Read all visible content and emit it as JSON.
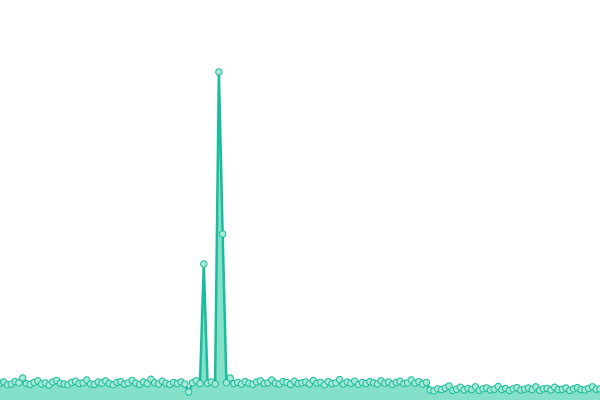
{
  "chart_data": {
    "type": "line",
    "area": true,
    "markers": true,
    "color": "#1abc9c",
    "area_color": "#84e0c8",
    "marker_fill": "#a8e8d6",
    "ylim": [
      0,
      100
    ],
    "values": [
      4.2,
      4.5,
      3.8,
      4.0,
      4.6,
      4.3,
      5.5,
      4.1,
      3.9,
      4.4,
      4.8,
      4.0,
      4.3,
      3.7,
      4.5,
      4.9,
      4.2,
      4.0,
      3.8,
      4.4,
      4.7,
      4.1,
      4.3,
      5.0,
      4.0,
      3.9,
      4.5,
      4.2,
      4.8,
      4.1,
      3.8,
      4.4,
      4.6,
      4.0,
      4.3,
      4.9,
      4.2,
      3.9,
      4.5,
      4.1,
      5.2,
      4.3,
      4.0,
      4.7,
      4.2,
      3.9,
      4.4,
      4.1,
      4.5,
      4.0,
      2.0,
      4.3,
      4.8,
      4.1,
      34,
      4.2,
      4.5,
      4.0,
      82,
      41.5,
      4.3,
      5.5,
      4.1,
      4.4,
      4.0,
      4.6,
      4.2,
      3.9,
      4.5,
      4.8,
      4.1,
      4.3,
      5.0,
      4.2,
      4.0,
      4.6,
      4.4,
      3.9,
      4.7,
      4.1,
      4.3,
      4.5,
      4.0,
      4.9,
      4.2,
      4.4,
      3.8,
      4.6,
      4.1,
      4.3,
      5.1,
      4.0,
      4.5,
      4.2,
      4.7,
      3.9,
      4.4,
      4.1,
      4.6,
      4.3,
      4.0,
      4.8,
      4.2,
      4.5,
      3.9,
      4.4,
      4.7,
      4.1,
      4.3,
      5.0,
      4.2,
      4.6,
      4.0,
      4.4,
      2.5,
      2.3,
      2.8,
      2.6,
      3.0,
      3.5,
      2.4,
      2.7,
      3.2,
      2.5,
      2.9,
      2.6,
      3.3,
      2.4,
      2.8,
      3.0,
      2.5,
      2.7,
      3.4,
      2.6,
      2.9,
      2.4,
      2.8,
      3.1,
      2.5,
      2.7,
      3.0,
      2.6,
      3.3,
      2.4,
      2.8,
      2.9,
      2.5,
      3.2,
      2.6,
      2.7,
      3.0,
      2.4,
      2.8,
      3.1,
      2.6,
      2.5,
      2.9,
      3.3,
      2.7,
      2.8
    ]
  }
}
